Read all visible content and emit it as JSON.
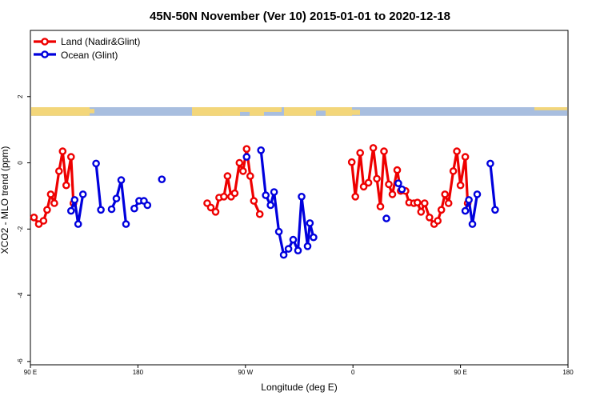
{
  "chart_data": {
    "type": "line",
    "title": "45N-50N November (Ver 10)   2015-01-01 to 2020-12-18",
    "xlabel": "Longitude (deg E)",
    "ylabel": "XCO2 - MLO trend (ppm)",
    "xlim": [
      90,
      540
    ],
    "ylim": [
      -6.1,
      4.0
    ],
    "x_ticks": [
      {
        "value": 90,
        "label": "90 E"
      },
      {
        "value": 180,
        "label": "180"
      },
      {
        "value": 270,
        "label": "90 W"
      },
      {
        "value": 360,
        "label": "0"
      },
      {
        "value": 450,
        "label": "90 E"
      },
      {
        "value": 540,
        "label": "180"
      }
    ],
    "y_ticks": [
      {
        "value": -6,
        "label": "-6"
      },
      {
        "value": -4,
        "label": "-4"
      },
      {
        "value": -2,
        "label": "-2"
      },
      {
        "value": 0,
        "label": "0"
      },
      {
        "value": 2,
        "label": "2"
      }
    ],
    "legend": {
      "position": "top-left",
      "entries": [
        {
          "name": "Land (Nadir&Glint)",
          "color": "#ee0000"
        },
        {
          "name": "Ocean (Glint)",
          "color": "#0000dd"
        }
      ]
    },
    "map_strip": {
      "y_range": [
        1.42,
        1.68
      ],
      "ocean_color": "#a8bedf",
      "land_color": "#f3d67a"
    },
    "series": [
      {
        "name": "Land (Nadir&Glint)",
        "color": "#ee0000",
        "segments": [
          [
            [
              93,
              -1.65
            ],
            [
              97,
              -1.85
            ],
            [
              101,
              -1.75
            ],
            [
              104,
              -1.42
            ],
            [
              107,
              -0.95
            ],
            [
              110,
              -1.22
            ],
            [
              114,
              -0.25
            ],
            [
              117,
              0.35
            ],
            [
              120,
              -0.68
            ],
            [
              124,
              0.18
            ],
            [
              126,
              -1.22
            ]
          ],
          [
            [
              238,
              -1.22
            ],
            [
              241,
              -1.35
            ],
            [
              245,
              -1.48
            ],
            [
              248,
              -1.05
            ],
            [
              252,
              -1.02
            ],
            [
              255,
              -0.4
            ],
            [
              258,
              -1.02
            ],
            [
              261,
              -0.92
            ],
            [
              265,
              0.0
            ],
            [
              268,
              -0.25
            ],
            [
              271,
              0.42
            ],
            [
              274,
              -0.4
            ],
            [
              277,
              -1.15
            ],
            [
              282,
              -1.55
            ]
          ],
          [
            [
              359,
              0.02
            ],
            [
              362,
              -1.02
            ],
            [
              366,
              0.3
            ],
            [
              369,
              -0.72
            ],
            [
              373,
              -0.6
            ],
            [
              377,
              0.45
            ],
            [
              380,
              -0.48
            ],
            [
              383,
              -1.32
            ],
            [
              386,
              0.35
            ],
            [
              390,
              -0.65
            ],
            [
              393,
              -0.95
            ],
            [
              397,
              -0.22
            ],
            [
              400,
              -0.85
            ],
            [
              404,
              -0.85
            ],
            [
              407,
              -1.2
            ],
            [
              411,
              -1.22
            ],
            [
              414,
              -1.2
            ],
            [
              417,
              -1.48
            ],
            [
              420,
              -1.22
            ],
            [
              424,
              -1.65
            ],
            [
              428,
              -1.85
            ],
            [
              431,
              -1.75
            ],
            [
              434,
              -1.42
            ],
            [
              437,
              -0.95
            ],
            [
              440,
              -1.22
            ],
            [
              444,
              -0.25
            ],
            [
              447,
              0.35
            ],
            [
              450,
              -0.68
            ],
            [
              454,
              0.18
            ],
            [
              456,
              -1.22
            ]
          ]
        ]
      },
      {
        "name": "Ocean (Glint)",
        "color": "#0000dd",
        "segments": [
          [
            [
              124,
              -1.45
            ],
            [
              127,
              -1.12
            ],
            [
              130,
              -1.85
            ],
            [
              134,
              -0.95
            ]
          ],
          [
            [
              145,
              -0.02
            ],
            [
              149,
              -1.42
            ]
          ],
          [
            [
              158,
              -1.4
            ],
            [
              162,
              -1.08
            ],
            [
              166,
              -0.52
            ],
            [
              170,
              -1.85
            ]
          ],
          [
            [
              177,
              -1.38
            ],
            [
              181,
              -1.15
            ],
            [
              185,
              -1.15
            ],
            [
              188,
              -1.28
            ]
          ],
          [
            [
              200,
              -0.5
            ]
          ],
          [
            [
              271,
              0.18
            ]
          ],
          [
            [
              283,
              0.38
            ],
            [
              287,
              -0.98
            ],
            [
              291,
              -1.28
            ],
            [
              294,
              -0.88
            ],
            [
              298,
              -2.08
            ],
            [
              302,
              -2.78
            ],
            [
              306,
              -2.6
            ],
            [
              310,
              -2.32
            ],
            [
              314,
              -2.65
            ],
            [
              317,
              -1.02
            ],
            [
              322,
              -2.52
            ],
            [
              324,
              -1.82
            ],
            [
              327,
              -2.25
            ]
          ],
          [
            [
              388,
              -1.68
            ]
          ],
          [
            [
              398,
              -0.62
            ],
            [
              401,
              -0.8
            ]
          ],
          [
            [
              454,
              -1.45
            ],
            [
              457,
              -1.12
            ],
            [
              460,
              -1.85
            ],
            [
              464,
              -0.95
            ]
          ],
          [
            [
              475,
              -0.02
            ],
            [
              479,
              -1.42
            ]
          ]
        ]
      }
    ]
  }
}
